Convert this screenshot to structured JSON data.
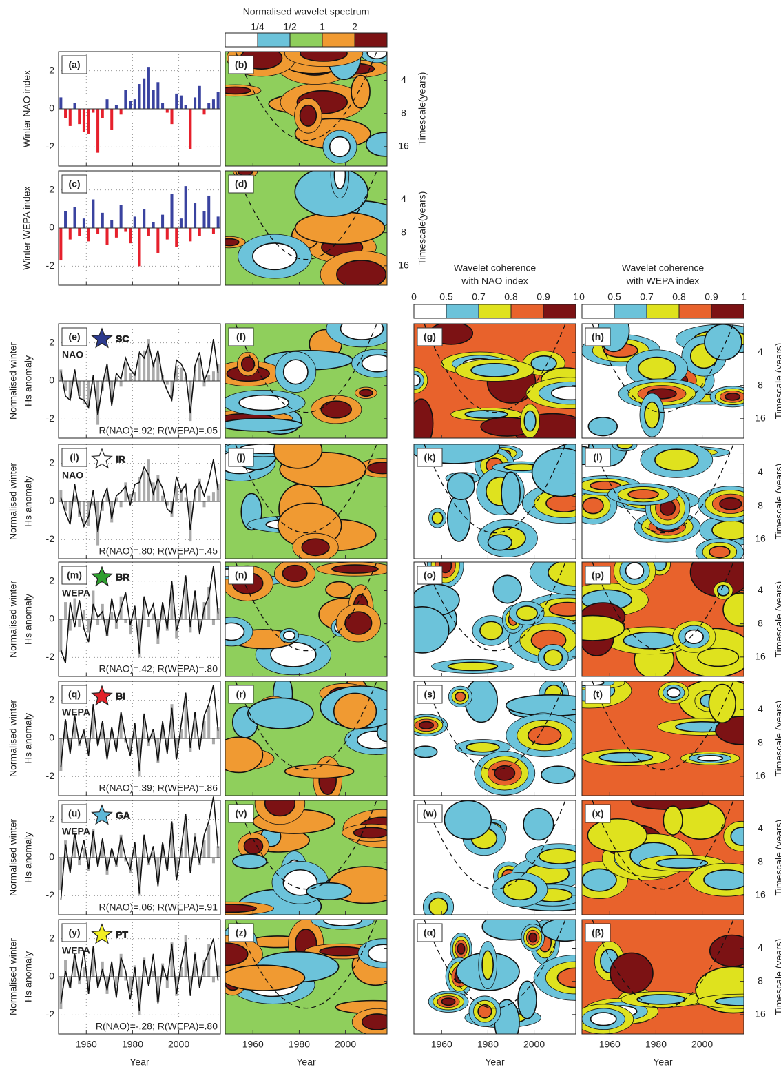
{
  "chart_data": {
    "type": "panel-grid",
    "x": [
      1949,
      1951,
      1953,
      1955,
      1957,
      1959,
      1961,
      1963,
      1965,
      1967,
      1969,
      1971,
      1973,
      1975,
      1977,
      1979,
      1981,
      1983,
      1985,
      1987,
      1989,
      1991,
      1993,
      1995,
      1997,
      1999,
      2001,
      2003,
      2005,
      2007,
      2009,
      2011,
      2013,
      2015,
      2017
    ],
    "xlim": [
      1948,
      2018
    ],
    "xticks": [
      1960,
      1980,
      2000
    ],
    "xlabel": "Year",
    "ylim": [
      -3,
      3
    ],
    "yticks": [
      -2,
      0,
      2
    ],
    "grid": true,
    "index_panels": [
      {
        "type": "bar",
        "label": "(a)",
        "ylabel": "Winter NAO index",
        "color_positive": "#3a43a0",
        "color_negative": "#e6202c",
        "values": [
          0.6,
          -0.5,
          -0.9,
          0.3,
          -0.8,
          -1.2,
          -1.3,
          -0.2,
          -2.3,
          -0.5,
          0.5,
          -1.1,
          0.2,
          -0.3,
          1.0,
          0.4,
          0.5,
          1.3,
          1.6,
          2.2,
          1.0,
          1.4,
          0.3,
          -0.2,
          -0.8,
          0.8,
          0.7,
          0.2,
          -2.1,
          0.6,
          1.2,
          -0.3,
          0.3,
          0.5,
          0.9
        ]
      },
      {
        "type": "bar",
        "label": "(c)",
        "ylabel": "Winter WEPA index",
        "color_positive": "#3a43a0",
        "color_negative": "#e6202c",
        "values": [
          -1.7,
          0.9,
          -0.6,
          1.1,
          -0.4,
          0.5,
          -0.7,
          1.5,
          -0.3,
          0.8,
          -0.9,
          0.4,
          -0.5,
          1.2,
          -0.2,
          -0.8,
          0.6,
          -2.0,
          1.0,
          -0.4,
          0.3,
          -1.3,
          0.7,
          -0.6,
          1.8,
          -1.0,
          0.5,
          2.2,
          -0.7,
          1.3,
          -0.4,
          0.9,
          1.7,
          -0.3,
          0.6
        ]
      }
    ],
    "station_panels": [
      {
        "type": "line",
        "label": "(e)",
        "ylabel": [
          "Normalised winter",
          "Hs anomaly"
        ],
        "station": "SC",
        "star_color": "#2d3b8e",
        "annotation": "R(NAO)=.92; R(WEPA)=.05",
        "series": [
          {
            "name": "NAO",
            "color": "#aaaaaa",
            "values": [
              0.6,
              -0.5,
              -0.9,
              0.3,
              -0.8,
              -1.2,
              -1.3,
              -0.2,
              -2.3,
              -0.5,
              0.5,
              -1.1,
              0.2,
              -0.3,
              1.0,
              0.4,
              0.5,
              1.3,
              1.6,
              2.2,
              1.0,
              1.4,
              0.3,
              -0.2,
              -0.8,
              0.8,
              0.7,
              0.2,
              -2.1,
              0.6,
              1.2,
              -0.3,
              0.3,
              0.5,
              0.9
            ]
          },
          {
            "name": "SC",
            "color": "#111111",
            "values": [
              0.5,
              -0.8,
              -1.0,
              0.6,
              -0.9,
              -1.0,
              -1.4,
              0.3,
              -1.8,
              -0.2,
              0.9,
              -1.3,
              0.4,
              0.1,
              1.2,
              0.6,
              0.3,
              1.5,
              1.2,
              1.9,
              0.8,
              1.6,
              0.1,
              -0.5,
              -1.0,
              1.1,
              0.9,
              0.4,
              -1.7,
              0.8,
              1.5,
              0.0,
              0.6,
              2.2,
              0.4
            ]
          }
        ]
      },
      {
        "type": "line",
        "label": "(i)",
        "ylabel": [
          "Normalised winter",
          "Hs anomaly"
        ],
        "station": "IR",
        "star_color": "#ffffff",
        "annotation": "R(NAO)=.80; R(WEPA)=.45",
        "series": [
          {
            "name": "NAO",
            "color": "#aaaaaa",
            "values": [
              0.6,
              -0.5,
              -0.9,
              0.3,
              -0.8,
              -1.2,
              -1.3,
              -0.2,
              -2.3,
              -0.5,
              0.5,
              -1.1,
              0.2,
              -0.3,
              1.0,
              0.4,
              0.5,
              1.3,
              1.6,
              2.2,
              1.0,
              1.4,
              0.3,
              -0.2,
              -0.8,
              0.8,
              0.7,
              0.2,
              -2.1,
              0.6,
              1.2,
              -0.3,
              0.3,
              0.5,
              0.9
            ]
          },
          {
            "name": "IR",
            "color": "#111111",
            "values": [
              0.2,
              -0.6,
              -1.2,
              0.9,
              -0.5,
              -1.3,
              -0.8,
              0.6,
              -1.6,
              0.1,
              0.7,
              -0.9,
              0.3,
              0.5,
              0.8,
              -0.2,
              0.9,
              1.0,
              1.8,
              1.4,
              0.4,
              1.2,
              0.7,
              -0.4,
              -0.6,
              1.3,
              0.5,
              0.9,
              -1.5,
              0.6,
              1.0,
              0.3,
              1.1,
              2.2,
              0.6
            ]
          }
        ]
      },
      {
        "type": "line",
        "label": "(m)",
        "ylabel": [
          "Normalised winter",
          "Hs anomaly"
        ],
        "station": "BR",
        "star_color": "#2e9e2e",
        "annotation": "R(NAO)=.42; R(WEPA)=.80",
        "series": [
          {
            "name": "WEPA",
            "color": "#aaaaaa",
            "values": [
              -1.7,
              0.9,
              -0.6,
              1.1,
              -0.4,
              0.5,
              -0.7,
              1.5,
              -0.3,
              0.8,
              -0.9,
              0.4,
              -0.5,
              1.2,
              -0.2,
              -0.8,
              0.6,
              -2.0,
              1.0,
              -0.4,
              0.3,
              -1.3,
              0.7,
              -0.6,
              1.8,
              -1.0,
              0.5,
              2.2,
              -0.7,
              1.3,
              -0.4,
              0.9,
              1.7,
              -0.3,
              0.6
            ]
          },
          {
            "name": "BR",
            "color": "#111111",
            "values": [
              -1.6,
              -2.3,
              0.9,
              -0.4,
              1.0,
              -0.5,
              -1.2,
              0.8,
              0.1,
              0.4,
              -0.9,
              1.1,
              -0.2,
              0.6,
              1.4,
              -0.3,
              0.7,
              -1.8,
              1.2,
              0.2,
              0.8,
              -1.0,
              0.9,
              -0.5,
              2.0,
              -0.6,
              0.3,
              2.3,
              -0.4,
              1.5,
              -0.8,
              0.6,
              1.2,
              2.8,
              0.3
            ]
          }
        ]
      },
      {
        "type": "line",
        "label": "(q)",
        "ylabel": [
          "Normalised winter",
          "Hs anomaly"
        ],
        "station": "BI",
        "star_color": "#e3222a",
        "annotation": "R(NAO)=.39; R(WEPA)=.86",
        "series": [
          {
            "name": "WEPA",
            "color": "#aaaaaa",
            "values": [
              -1.7,
              0.9,
              -0.6,
              1.1,
              -0.4,
              0.5,
              -0.7,
              1.5,
              -0.3,
              0.8,
              -0.9,
              0.4,
              -0.5,
              1.2,
              -0.2,
              -0.8,
              0.6,
              -2.0,
              1.0,
              -0.4,
              0.3,
              -1.3,
              0.7,
              -0.6,
              1.8,
              -1.0,
              0.5,
              2.2,
              -0.7,
              1.3,
              -0.4,
              0.9,
              1.7,
              -0.3,
              0.6
            ]
          },
          {
            "name": "BI",
            "color": "#111111",
            "values": [
              -1.5,
              1.0,
              -0.8,
              1.2,
              -0.3,
              0.4,
              -0.9,
              1.8,
              -0.4,
              0.9,
              -1.1,
              0.6,
              -0.7,
              1.4,
              0.0,
              -0.9,
              0.8,
              -1.7,
              1.3,
              -0.2,
              0.5,
              -1.2,
              0.9,
              -0.8,
              1.6,
              -1.1,
              0.7,
              2.4,
              -0.5,
              1.4,
              -0.6,
              1.2,
              1.8,
              2.8,
              0.4
            ]
          }
        ]
      },
      {
        "type": "line",
        "label": "(u)",
        "ylabel": [
          "Normalised winter",
          "Hs anomaly"
        ],
        "station": "GA",
        "star_color": "#5db8d8",
        "annotation": "R(NAO)=.06; R(WEPA)=.91",
        "series": [
          {
            "name": "WEPA",
            "color": "#aaaaaa",
            "values": [
              -1.7,
              0.9,
              -0.6,
              1.1,
              -0.4,
              0.5,
              -0.7,
              1.5,
              -0.3,
              0.8,
              -0.9,
              0.4,
              -0.5,
              1.2,
              -0.2,
              -0.8,
              0.6,
              -2.0,
              1.0,
              -0.4,
              0.3,
              -1.3,
              0.7,
              -0.6,
              1.8,
              -1.0,
              0.5,
              2.2,
              -0.7,
              1.3,
              -0.4,
              0.9,
              1.7,
              -0.3,
              0.6
            ]
          },
          {
            "name": "GA",
            "color": "#111111",
            "values": [
              -2.2,
              0.7,
              -0.8,
              1.3,
              -0.1,
              0.9,
              -0.6,
              1.4,
              -0.5,
              1.0,
              -0.7,
              0.5,
              -0.4,
              1.1,
              0.0,
              -0.6,
              0.8,
              -1.9,
              1.2,
              -0.3,
              0.6,
              -1.5,
              0.8,
              -0.7,
              1.9,
              -1.2,
              0.4,
              2.3,
              -0.8,
              1.1,
              -0.3,
              1.2,
              1.9,
              3.2,
              0.5
            ]
          }
        ]
      },
      {
        "type": "line",
        "label": "(y)",
        "ylabel": [
          "Normalised winter",
          "Hs anomaly"
        ],
        "station": "PT",
        "star_color": "#f2f020",
        "annotation": "R(NAO)=-.28; R(WEPA)=.80",
        "series": [
          {
            "name": "WEPA",
            "color": "#aaaaaa",
            "values": [
              -1.7,
              0.9,
              -0.6,
              1.1,
              -0.4,
              0.5,
              -0.7,
              1.5,
              -0.3,
              0.8,
              -0.9,
              0.4,
              -0.5,
              1.2,
              -0.2,
              -0.8,
              0.6,
              -2.0,
              1.0,
              -0.4,
              0.3,
              -1.3,
              0.7,
              -0.6,
              1.8,
              -1.0,
              0.5,
              2.2,
              -0.7,
              1.3,
              -0.4,
              0.9,
              1.7,
              -0.3,
              0.6
            ]
          },
          {
            "name": "PT",
            "color": "#111111",
            "values": [
              -1.4,
              0.3,
              -0.6,
              1.2,
              -0.2,
              1.4,
              -0.9,
              1.6,
              -0.6,
              0.4,
              -0.7,
              0.8,
              -1.1,
              1.0,
              0.3,
              -1.2,
              0.5,
              -1.8,
              0.9,
              -0.5,
              1.2,
              -1.4,
              0.6,
              -0.2,
              1.7,
              -0.9,
              0.6,
              1.8,
              -1.0,
              1.2,
              -0.6,
              0.7,
              1.3,
              2.0,
              -0.2
            ]
          }
        ]
      }
    ],
    "wavelet": {
      "ylim": [
        2.2,
        24
      ],
      "log_scale": true,
      "yticks": [
        4,
        8,
        16
      ],
      "ylabel_spectrum": "Timescale(years)",
      "ylabel_coherence": "Timescale (years)",
      "spectrum_panels": [
        "(b)",
        "(d)",
        "(f)",
        "(j)",
        "(n)",
        "(r)",
        "(v)",
        "(z)"
      ],
      "nao_coherence_panels": [
        "(g)",
        "(k)",
        "(o)",
        "(s)",
        "(w)",
        "(α)"
      ],
      "wepa_coherence_panels": [
        "(h)",
        "(l)",
        "(p)",
        "(t)",
        "(x)",
        "(β)"
      ],
      "spectrum_colorbar": {
        "title": "Normalised wavelet spectrum",
        "labels": [
          "1/4",
          "1/2",
          "1",
          "2"
        ],
        "colors": [
          "#ffffff",
          "#6cc3da",
          "#8fcf5c",
          "#f09a32",
          "#7c1214"
        ]
      },
      "nao_colorbar": {
        "title": [
          "Wavelet coherence",
          "with NAO index"
        ],
        "ticks": [
          0,
          0.5,
          0.7,
          0.8,
          0.9,
          1
        ],
        "colors": [
          "#ffffff",
          "#6cc3da",
          "#dfe21e",
          "#e8622c",
          "#7c1214"
        ]
      },
      "wepa_colorbar": {
        "title": [
          "Wavelet coherence",
          "with WEPA index"
        ],
        "ticks": [
          0,
          0.5,
          0.7,
          0.8,
          0.9,
          1
        ],
        "colors": [
          "#ffffff",
          "#6cc3da",
          "#dfe21e",
          "#e8622c",
          "#7c1214"
        ]
      }
    }
  }
}
